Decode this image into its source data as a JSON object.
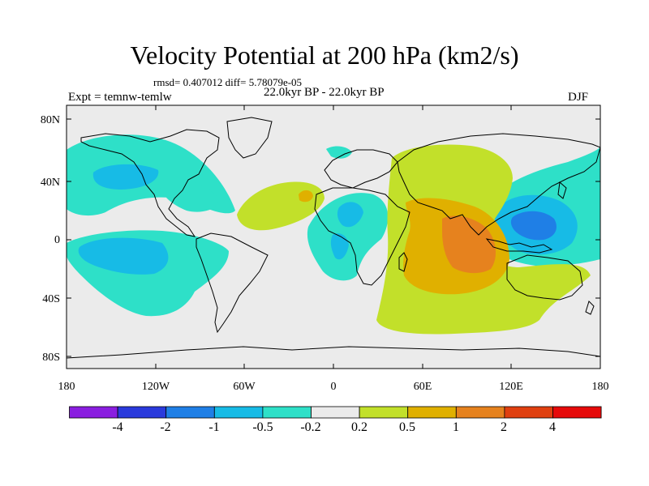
{
  "title": "Velocity Potential at 200 hPa (km2/s)",
  "stats_line": "rmsd= 0.407012 diff= 5.78079e-05",
  "period_line": "22.0kyr BP - 22.0kyr BP",
  "experiment_line": "Expt = temnw-temlw",
  "season": "DJF",
  "axes": {
    "x_ticks": [
      "180",
      "120W",
      "60W",
      "0",
      "60E",
      "120E",
      "180"
    ],
    "y_ticks": [
      "80N",
      "40N",
      "0",
      "40S",
      "80S"
    ]
  },
  "colorbar": {
    "colors": [
      "#8a1ee0",
      "#2a3adc",
      "#1f7fe6",
      "#17bbe6",
      "#2ee0c8",
      "#ebebeb",
      "#c2e02a",
      "#e0b000",
      "#e6821e",
      "#e04010",
      "#e60a0a"
    ],
    "labels": [
      "-4",
      "-2",
      "-1",
      "-0.5",
      "-0.2",
      "0.2",
      "0.5",
      "1",
      "2",
      "4"
    ]
  },
  "colors": {
    "ocean_background": "#ebebeb",
    "coastline": "#000000"
  }
}
